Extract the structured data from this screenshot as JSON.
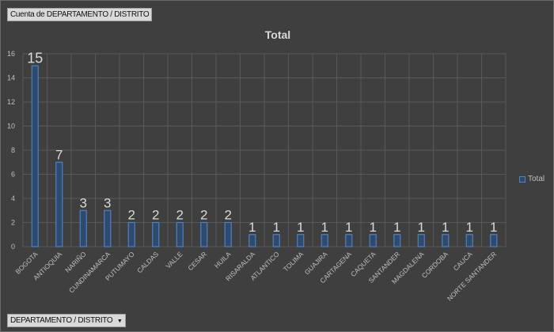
{
  "field_buttons": {
    "value_field": "Cuenta de DEPARTAMENTO / DISTRITO",
    "axis_field": "DEPARTAMENTO / DISTRITO",
    "axis_field_icon": "dropdown-arrow-icon"
  },
  "colors": {
    "bar_fill": "#2e4a6e",
    "bar_stroke": "#4f81bd",
    "background": "#3f3f3f",
    "grid": "#595959"
  },
  "chart_data": {
    "type": "bar",
    "title": "Total",
    "xlabel": "",
    "ylabel": "",
    "ylim": [
      0,
      16
    ],
    "yticks": [
      0,
      2,
      4,
      6,
      8,
      10,
      12,
      14,
      16
    ],
    "grid": true,
    "legend": {
      "position": "right",
      "entries": [
        "Total"
      ]
    },
    "categories": [
      "BOGOTA",
      "ANTIOQUIA",
      "NARIÑO",
      "CUNDINAMARCA",
      "PUTUMAYO",
      "CALDAS",
      "VALLE",
      "CESAR",
      "HUILA",
      "RISARALDA",
      "ATLANTICO",
      "TOLIMA",
      "GUAJIRA",
      "CARTAGENA",
      "CAQUETA",
      "SANTANDER",
      "MAGDALENA",
      "CORDOBA",
      "CAUCA",
      "NORTE SANTANDER"
    ],
    "series": [
      {
        "name": "Total",
        "values": [
          15,
          7,
          3,
          3,
          2,
          2,
          2,
          2,
          2,
          1,
          1,
          1,
          1,
          1,
          1,
          1,
          1,
          1,
          1,
          1
        ]
      }
    ]
  }
}
